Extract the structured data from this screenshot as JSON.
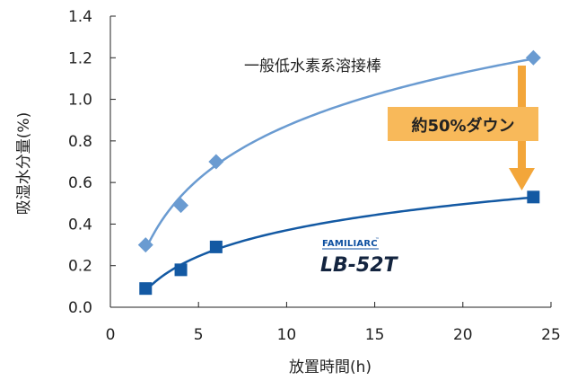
{
  "chart_data": {
    "type": "line",
    "title": "",
    "xlabel": "放置時間(h)",
    "ylabel": "吸湿水分量(%)",
    "xlim": [
      0,
      25
    ],
    "ylim": [
      0.0,
      1.4
    ],
    "x_ticks": [
      "0",
      "5",
      "10",
      "15",
      "20",
      "25"
    ],
    "y_ticks": [
      "0.0",
      "0.2",
      "0.4",
      "0.6",
      "0.8",
      "1.0",
      "1.2",
      "1.4"
    ],
    "grid": false,
    "series": [
      {
        "name": "一般低水素系溶接棒",
        "marker": "diamond",
        "color": "#6a9bd1",
        "x": [
          2,
          4,
          6,
          24
        ],
        "y": [
          0.3,
          0.49,
          0.7,
          1.2
        ]
      },
      {
        "name": "LB-52T",
        "marker": "square",
        "color": "#1359a3",
        "x": [
          2,
          4,
          6,
          24
        ],
        "y": [
          0.09,
          0.18,
          0.29,
          0.53
        ]
      }
    ],
    "annotations": {
      "callout": "約50%ダウン",
      "brand": "FAMILIARC",
      "brand_mark": "™",
      "product": "LB-52T"
    },
    "colors": {
      "callout_bg": "#f8b95a",
      "arrow": "#f3a63a",
      "brand": "#0d4fa0",
      "product": "#13243f",
      "axis": "#222222"
    }
  }
}
